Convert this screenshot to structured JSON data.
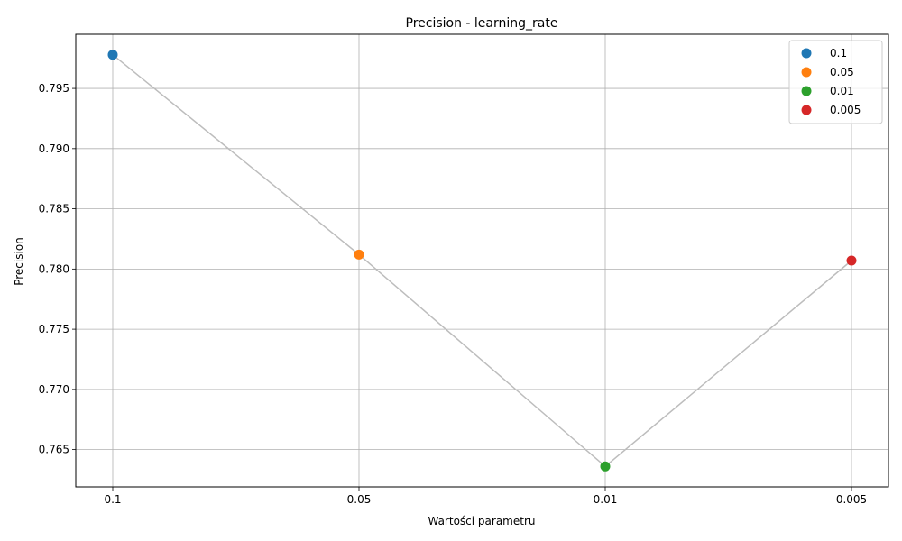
{
  "chart_data": {
    "type": "line",
    "title": "Precision - learning_rate",
    "xlabel": "Wartości parametru",
    "ylabel": "Precision",
    "categories": [
      "0.1",
      "0.05",
      "0.01",
      "0.005"
    ],
    "values": [
      0.7978,
      0.7812,
      0.7636,
      0.7807
    ],
    "point_colors": [
      "#1f77b4",
      "#ff7f0e",
      "#2ca02c",
      "#d62728"
    ],
    "line_color": "#bdbdbd",
    "yticks": [
      0.765,
      0.77,
      0.775,
      0.78,
      0.785,
      0.79,
      0.795
    ],
    "ytick_labels": [
      "0.765",
      "0.770",
      "0.775",
      "0.780",
      "0.785",
      "0.790",
      "0.795"
    ],
    "ylim": [
      0.7619,
      0.7995
    ],
    "grid": true,
    "legend": {
      "position": "top-right",
      "entries": [
        "0.1",
        "0.05",
        "0.01",
        "0.005"
      ]
    }
  }
}
